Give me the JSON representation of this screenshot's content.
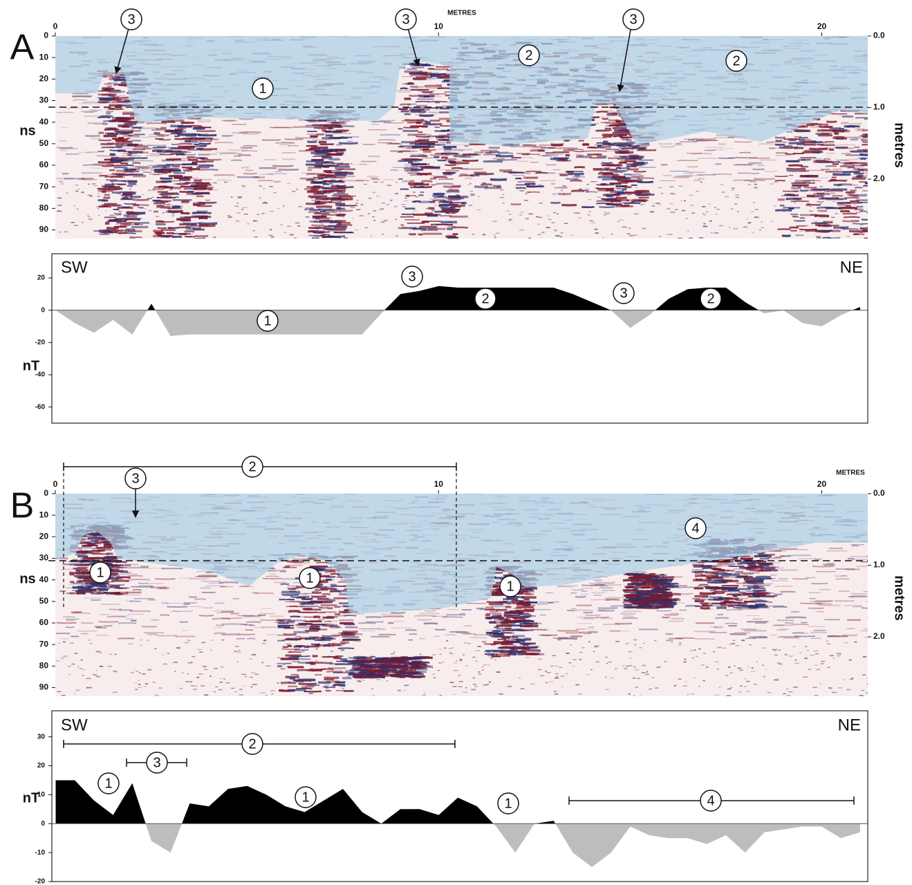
{
  "chart_data": [
    {
      "type": "radargram",
      "panel_label": "A",
      "xlabel": "METRES",
      "ylabel": "ns",
      "y2label": "metres",
      "xlim": [
        0,
        21.2
      ],
      "xticks": [
        0,
        10,
        20
      ],
      "ylim": [
        0,
        94
      ],
      "yticks": [
        0,
        10,
        20,
        30,
        40,
        50,
        60,
        70,
        80,
        90
      ],
      "y2lim": [
        0,
        2.83
      ],
      "y2ticks": [
        {
          "value": 0,
          "label": "0.0"
        },
        {
          "value": 1,
          "label": "1.0"
        },
        {
          "value": 2,
          "label": "2.0"
        }
      ],
      "yaxis_inverted": true,
      "background": "#f8eded",
      "band_colors": [
        "#7b1a2e",
        "#2b2f6e"
      ],
      "zone_color": "#a9cfe6",
      "annotations": [
        {
          "text": "3"
        },
        {
          "text": "3"
        },
        {
          "text": "3"
        },
        {
          "text": "1"
        },
        {
          "text": "2"
        },
        {
          "text": "2"
        }
      ]
    },
    {
      "type": "area",
      "left_label": "SW",
      "right_label": "NE",
      "ylabel": "nT",
      "xlim": [
        -0.1,
        21.2
      ],
      "ylim": [
        -70,
        35
      ],
      "yticks": [
        20,
        0,
        -20,
        -40,
        -60
      ],
      "colors": {
        "positive": "#000000",
        "negative": "#bdbdbd"
      },
      "x": [
        0,
        0.5,
        1,
        1.5,
        2,
        2.5,
        3,
        3.5,
        4,
        4.5,
        5,
        5.5,
        6,
        6.5,
        7,
        7.5,
        8,
        8.5,
        9,
        9.5,
        10,
        10.5,
        11,
        11.5,
        12,
        12.5,
        13,
        13.5,
        14,
        14.5,
        15,
        15.5,
        16,
        16.5,
        17,
        17.5,
        18,
        18.5,
        19,
        19.5,
        20,
        20.5,
        21
      ],
      "values": [
        0,
        -8,
        -14,
        -6,
        -15,
        4,
        -16,
        -15,
        -15,
        -15,
        -15,
        -15,
        -15,
        -15,
        -15,
        -15,
        -15,
        -2,
        10,
        12,
        15,
        14,
        14,
        14,
        14,
        14,
        14,
        10,
        5,
        0,
        -11,
        -3,
        7,
        13,
        14,
        14,
        5,
        -2,
        0,
        -8,
        -10,
        -3,
        2
      ],
      "annotations": [
        {
          "text": "3"
        },
        {
          "text": "2"
        },
        {
          "text": "3"
        },
        {
          "text": "2"
        },
        {
          "text": "1"
        }
      ]
    },
    {
      "type": "radargram",
      "panel_label": "B",
      "xlabel": "METRES",
      "ylabel": "ns",
      "y2label": "metres",
      "xlim": [
        0,
        21.2
      ],
      "xticks": [
        0,
        10,
        20
      ],
      "ylim": [
        0,
        94
      ],
      "yticks": [
        0,
        10,
        20,
        30,
        40,
        50,
        60,
        70,
        80,
        90
      ],
      "y2lim": [
        0,
        2.83
      ],
      "y2ticks": [
        {
          "value": 0,
          "label": "0.0"
        },
        {
          "value": 1,
          "label": "1.0"
        },
        {
          "value": 2,
          "label": "2.0"
        }
      ],
      "yaxis_inverted": true,
      "background": "#f8eded",
      "band_colors": [
        "#7b1a2e",
        "#2b2f6e"
      ],
      "zone_color": "#a9cfe6",
      "annotations": [
        {
          "text": "2"
        },
        {
          "text": "3"
        },
        {
          "text": "1"
        },
        {
          "text": "1"
        },
        {
          "text": "1"
        },
        {
          "text": "4"
        }
      ]
    },
    {
      "type": "area",
      "left_label": "SW",
      "right_label": "NE",
      "ylabel": "nT",
      "xlim": [
        -0.1,
        21.2
      ],
      "ylim": [
        -20,
        39
      ],
      "yticks": [
        30,
        20,
        10,
        0,
        -10,
        -20
      ],
      "colors": {
        "positive": "#000000",
        "negative": "#bdbdbd"
      },
      "x": [
        0,
        0.5,
        1,
        1.5,
        2,
        2.5,
        3,
        3.5,
        4,
        4.5,
        5,
        5.5,
        6,
        6.5,
        7,
        7.5,
        8,
        8.5,
        9,
        9.5,
        10,
        10.5,
        11,
        11.5,
        12,
        12.5,
        13,
        13.5,
        14,
        14.5,
        15,
        15.5,
        16,
        16.5,
        17,
        17.5,
        18,
        18.5,
        19,
        19.5,
        20,
        20.5,
        21
      ],
      "values": [
        15,
        15,
        8,
        3,
        14,
        -6,
        -10,
        7,
        6,
        12,
        13,
        10,
        6,
        4,
        8,
        12,
        4,
        0,
        5,
        5,
        3,
        9,
        6,
        -1,
        -10,
        0,
        1,
        -10,
        -15,
        -10,
        -1,
        -4,
        -5,
        -5,
        -7,
        -4,
        -10,
        -3,
        -2,
        -1,
        -1,
        -5,
        -3
      ],
      "annotations": [
        {
          "text": "2"
        },
        {
          "text": "3"
        },
        {
          "text": "1"
        },
        {
          "text": "1"
        },
        {
          "text": "1"
        },
        {
          "text": "4"
        }
      ]
    }
  ]
}
